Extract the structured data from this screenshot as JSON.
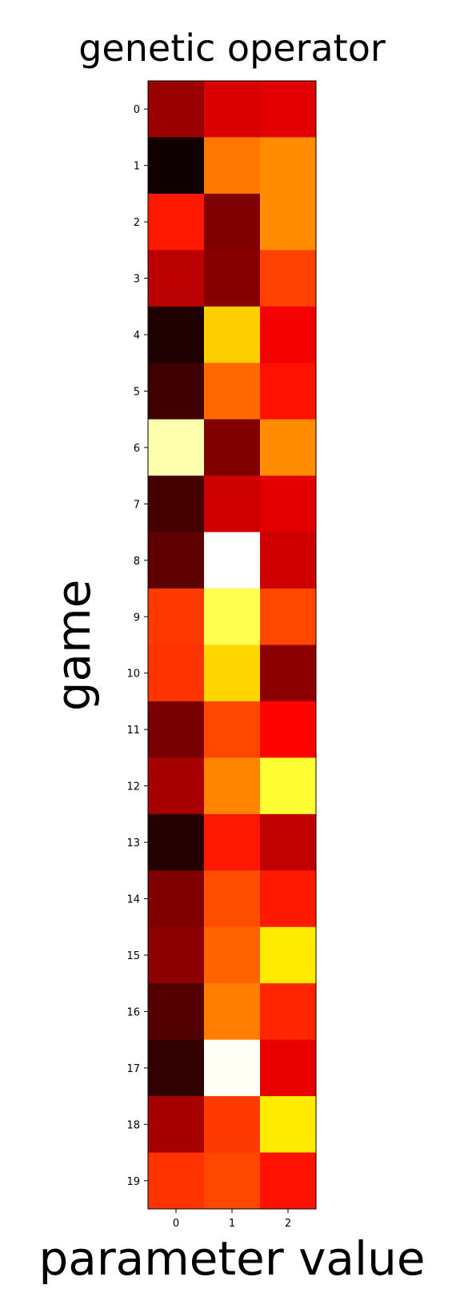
{
  "chart_data": {
    "type": "heatmap",
    "title": "genetic operator",
    "xlabel": "parameter value",
    "ylabel": "game",
    "colormap": "hot",
    "x_ticks": [
      "0",
      "1",
      "2"
    ],
    "y_ticks": [
      "0",
      "1",
      "2",
      "3",
      "4",
      "5",
      "6",
      "7",
      "8",
      "9",
      "10",
      "11",
      "12",
      "13",
      "14",
      "15",
      "16",
      "17",
      "18",
      "19"
    ],
    "values_normalized_0_to_1": [
      [
        0.22,
        0.32,
        0.33
      ],
      [
        0.01,
        0.55,
        0.58
      ],
      [
        0.41,
        0.18,
        0.58
      ],
      [
        0.27,
        0.19,
        0.47
      ],
      [
        0.03,
        0.68,
        0.36
      ],
      [
        0.08,
        0.53,
        0.4
      ],
      [
        0.92,
        0.18,
        0.58
      ],
      [
        0.09,
        0.3,
        0.33
      ],
      [
        0.13,
        1.0,
        0.3
      ],
      [
        0.46,
        0.83,
        0.48
      ],
      [
        0.45,
        0.69,
        0.2
      ],
      [
        0.17,
        0.48,
        0.38
      ],
      [
        0.24,
        0.57,
        0.8
      ],
      [
        0.04,
        0.41,
        0.28
      ],
      [
        0.18,
        0.49,
        0.41
      ],
      [
        0.2,
        0.52,
        0.72
      ],
      [
        0.11,
        0.56,
        0.43
      ],
      [
        0.06,
        0.99,
        0.34
      ],
      [
        0.24,
        0.46,
        0.72
      ],
      [
        0.45,
        0.48,
        0.4
      ]
    ]
  }
}
